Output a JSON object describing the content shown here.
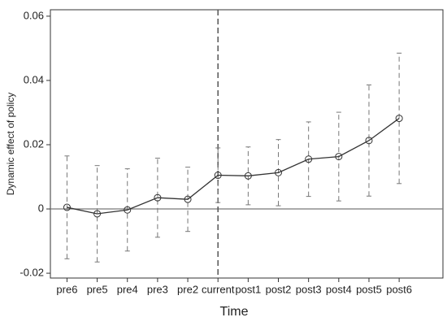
{
  "chart_data": {
    "type": "errorbar",
    "xlabel": "Time",
    "ylabel": "Dynamic effect of policy",
    "categories": [
      "pre6",
      "pre5",
      "pre4",
      "pre3",
      "pre2",
      "current",
      "post1",
      "post2",
      "post3",
      "post4",
      "post5",
      "post6"
    ],
    "values": [
      0.0005,
      -0.0015,
      -0.0003,
      0.0035,
      0.003,
      0.0105,
      0.0103,
      0.0113,
      0.0155,
      0.0163,
      0.0213,
      0.0282
    ],
    "errors": [
      0.016,
      0.015,
      0.0128,
      0.0123,
      0.01,
      0.0085,
      0.009,
      0.0103,
      0.0116,
      0.0138,
      0.0173,
      0.0203
    ],
    "color": "#333333",
    "ylim": [
      -0.0215,
      0.062
    ],
    "yticks": [
      -0.02,
      0,
      0.02,
      0.04,
      0.06
    ],
    "yline": 0,
    "xline": "current"
  }
}
